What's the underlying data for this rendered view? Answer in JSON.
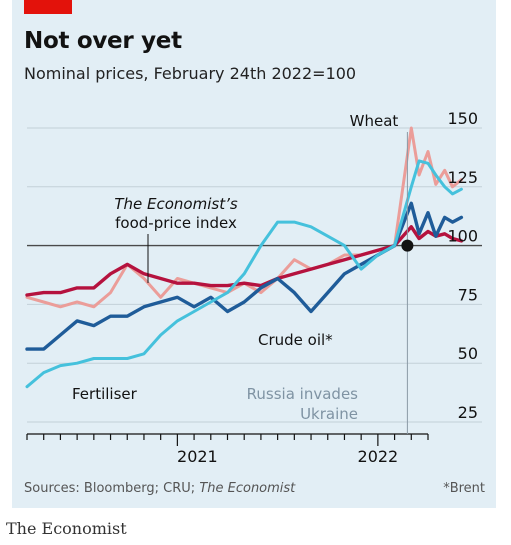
{
  "header": {
    "title": "Not over yet",
    "subtitle": "Nominal prices, February 24th 2022=100"
  },
  "footer": {
    "sources_prefix": "Sources: Bloomberg; CRU; ",
    "sources_italic": "The Economist",
    "footnote": "*Brent",
    "brand": "The Economist"
  },
  "colors": {
    "panel": "#e2eef5",
    "red_tab": "#e3120b",
    "wheat": "#eb9d99",
    "food_index": "#b5123e",
    "crude_oil": "#1f5c99",
    "fertiliser": "#45c1dc"
  },
  "chart_data": {
    "type": "line",
    "x_start": "2020-04",
    "x_end": "2022-04",
    "ylim": [
      25,
      150
    ],
    "yticks": [
      25,
      50,
      75,
      100,
      125,
      150
    ],
    "xtick_labels": [
      {
        "label": "2021",
        "x": "2021-01"
      },
      {
        "label": "2022",
        "x": "2022-01"
      }
    ],
    "series": [
      {
        "name": "Wheat",
        "color_key": "wheat",
        "points": [
          [
            "2020-04",
            78
          ],
          [
            "2020-05",
            76
          ],
          [
            "2020-06",
            74
          ],
          [
            "2020-07",
            76
          ],
          [
            "2020-08",
            74
          ],
          [
            "2020-09",
            80
          ],
          [
            "2020-10",
            92
          ],
          [
            "2020-11",
            86
          ],
          [
            "2020-12",
            78
          ],
          [
            "2021-01",
            86
          ],
          [
            "2021-02",
            84
          ],
          [
            "2021-03",
            82
          ],
          [
            "2021-04",
            80
          ],
          [
            "2021-05",
            84
          ],
          [
            "2021-06",
            80
          ],
          [
            "2021-07",
            86
          ],
          [
            "2021-08",
            94
          ],
          [
            "2021-09",
            90
          ],
          [
            "2021-10",
            92
          ],
          [
            "2021-11",
            96
          ],
          [
            "2021-12",
            96
          ],
          [
            "2022-01",
            98
          ],
          [
            "2022-02",
            100
          ],
          [
            "2022-03",
            150
          ],
          [
            "2022-03-15",
            130
          ],
          [
            "2022-04",
            140
          ],
          [
            "2022-04-15",
            126
          ],
          [
            "2022-05",
            132
          ],
          [
            "2022-05-15",
            125
          ],
          [
            "2022-06",
            128
          ]
        ]
      },
      {
        "name": "Food-price index",
        "color_key": "food_index",
        "points": [
          [
            "2020-04",
            79
          ],
          [
            "2020-05",
            80
          ],
          [
            "2020-06",
            80
          ],
          [
            "2020-07",
            82
          ],
          [
            "2020-08",
            82
          ],
          [
            "2020-09",
            88
          ],
          [
            "2020-10",
            92
          ],
          [
            "2020-11",
            88
          ],
          [
            "2020-12",
            86
          ],
          [
            "2021-01",
            84
          ],
          [
            "2021-02",
            84
          ],
          [
            "2021-03",
            83
          ],
          [
            "2021-04",
            83
          ],
          [
            "2021-05",
            84
          ],
          [
            "2021-06",
            83
          ],
          [
            "2021-07",
            86
          ],
          [
            "2021-08",
            88
          ],
          [
            "2021-09",
            90
          ],
          [
            "2021-10",
            92
          ],
          [
            "2021-11",
            94
          ],
          [
            "2021-12",
            96
          ],
          [
            "2022-01",
            98
          ],
          [
            "2022-02",
            100
          ],
          [
            "2022-03",
            108
          ],
          [
            "2022-03-15",
            103
          ],
          [
            "2022-04",
            106
          ],
          [
            "2022-04-15",
            104
          ],
          [
            "2022-05",
            105
          ],
          [
            "2022-05-15",
            103
          ],
          [
            "2022-06",
            102
          ]
        ]
      },
      {
        "name": "Crude oil",
        "color_key": "crude_oil",
        "points": [
          [
            "2020-04",
            56
          ],
          [
            "2020-05",
            56
          ],
          [
            "2020-06",
            62
          ],
          [
            "2020-07",
            68
          ],
          [
            "2020-08",
            66
          ],
          [
            "2020-09",
            70
          ],
          [
            "2020-10",
            70
          ],
          [
            "2020-11",
            74
          ],
          [
            "2020-12",
            76
          ],
          [
            "2021-01",
            78
          ],
          [
            "2021-02",
            74
          ],
          [
            "2021-03",
            78
          ],
          [
            "2021-04",
            72
          ],
          [
            "2021-05",
            76
          ],
          [
            "2021-06",
            82
          ],
          [
            "2021-07",
            86
          ],
          [
            "2021-08",
            80
          ],
          [
            "2021-09",
            72
          ],
          [
            "2021-10",
            80
          ],
          [
            "2021-11",
            88
          ],
          [
            "2021-12",
            92
          ],
          [
            "2022-01",
            96
          ],
          [
            "2022-02",
            100
          ],
          [
            "2022-03",
            118
          ],
          [
            "2022-03-15",
            105
          ],
          [
            "2022-04",
            114
          ],
          [
            "2022-04-15",
            104
          ],
          [
            "2022-05",
            112
          ],
          [
            "2022-05-15",
            110
          ],
          [
            "2022-06",
            112
          ]
        ]
      },
      {
        "name": "Fertiliser",
        "color_key": "fertiliser",
        "points": [
          [
            "2020-04",
            40
          ],
          [
            "2020-05",
            46
          ],
          [
            "2020-06",
            49
          ],
          [
            "2020-07",
            50
          ],
          [
            "2020-08",
            52
          ],
          [
            "2020-09",
            52
          ],
          [
            "2020-10",
            52
          ],
          [
            "2020-11",
            54
          ],
          [
            "2020-12",
            62
          ],
          [
            "2021-01",
            68
          ],
          [
            "2021-02",
            72
          ],
          [
            "2021-03",
            76
          ],
          [
            "2021-04",
            80
          ],
          [
            "2021-05",
            88
          ],
          [
            "2021-06",
            100
          ],
          [
            "2021-07",
            110
          ],
          [
            "2021-08",
            110
          ],
          [
            "2021-09",
            108
          ],
          [
            "2021-10",
            104
          ],
          [
            "2021-11",
            100
          ],
          [
            "2021-12",
            90
          ],
          [
            "2022-01",
            96
          ],
          [
            "2022-02",
            100
          ],
          [
            "2022-03",
            125
          ],
          [
            "2022-03-15",
            136
          ],
          [
            "2022-04",
            135
          ],
          [
            "2022-04-15",
            130
          ],
          [
            "2022-05",
            125
          ],
          [
            "2022-05-15",
            122
          ],
          [
            "2022-06",
            124
          ]
        ]
      }
    ],
    "reference_line": 100,
    "event_marker": {
      "x": "2022-02-24",
      "y": 100
    },
    "annotations": {
      "wheat": "Wheat",
      "food_index_line1": "The Economist’s",
      "food_index_line2": "food-price index",
      "crude_oil": "Crude oil*",
      "fertiliser": "Fertiliser",
      "event_line1": "Russia invades",
      "event_line2": "Ukraine"
    }
  }
}
